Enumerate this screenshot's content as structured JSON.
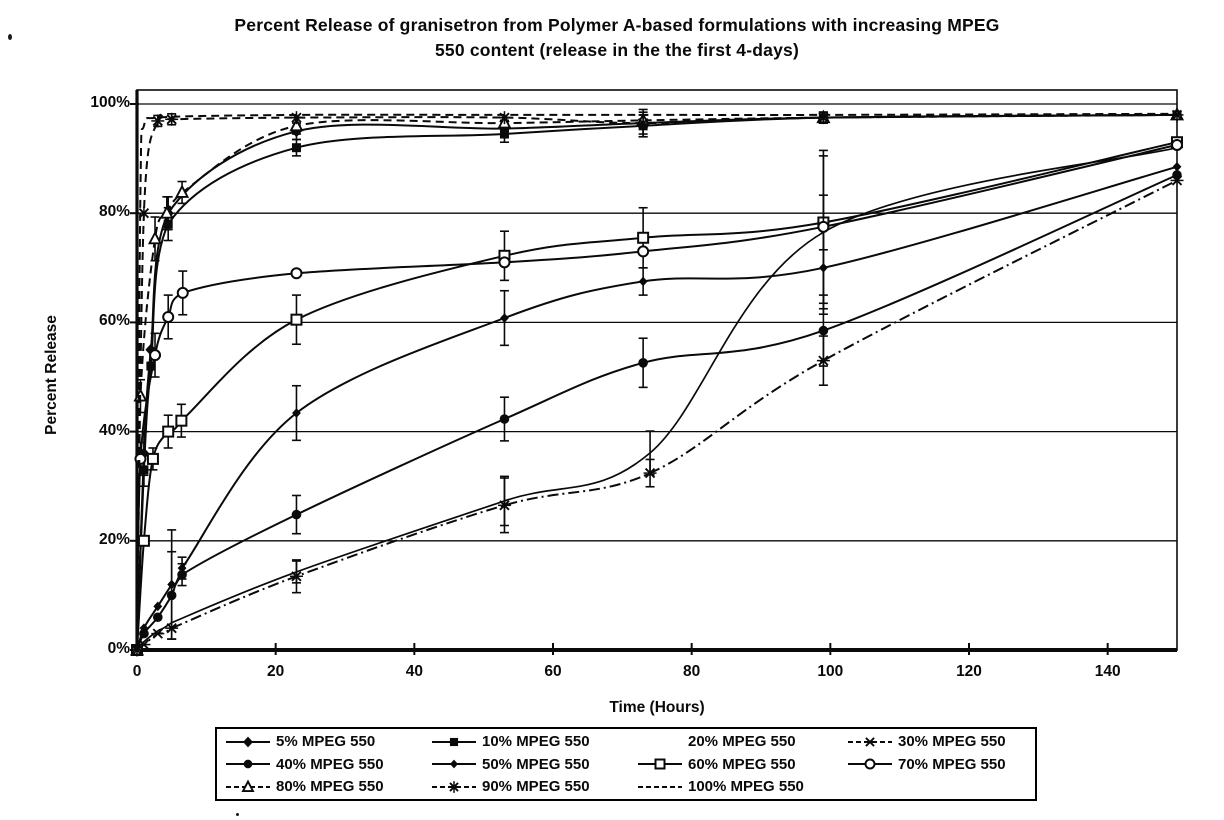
{
  "title": {
    "line1": "Percent Release of granisetron from Polymer A-based formulations with increasing MPEG",
    "line2": "550 content (release in the the first 4-days)"
  },
  "chart_data": {
    "type": "line",
    "title": "Percent Release of granisetron from Polymer A-based formulations with increasing MPEG 550 content (release in the the first 4-days)",
    "xlabel": "Time (Hours)",
    "ylabel": "Percent Release",
    "xlim": [
      0,
      150
    ],
    "ylim": [
      0,
      100
    ],
    "x_ticks": [
      0,
      20,
      40,
      60,
      80,
      100,
      120,
      140
    ],
    "y_tick_labels": [
      "0%",
      "20%",
      "40%",
      "60%",
      "80%",
      "100%"
    ],
    "y_tick_values": [
      0,
      20,
      40,
      60,
      80,
      100
    ],
    "grid": "horizontal-only",
    "legend_position": "bottom",
    "ink_color": "#0a0a0a",
    "background": "#ffffff",
    "series": [
      {
        "name": "5% MPEG 550",
        "marker": "diamond-filled",
        "line_style": "solid",
        "x": [
          0,
          1,
          2,
          4.5,
          23,
          53,
          73,
          99,
          150
        ],
        "y": [
          0,
          36,
          55,
          80,
          95,
          95.5,
          96.5,
          97.5,
          98
        ],
        "err": [
          0,
          4,
          0,
          3,
          1.5,
          1.5,
          2,
          1,
          0
        ]
      },
      {
        "name": "10% MPEG 550",
        "marker": "square-filled",
        "line_style": "solid",
        "x": [
          0,
          1,
          2,
          4.5,
          23,
          53,
          73,
          99,
          150
        ],
        "y": [
          0,
          33,
          52,
          78,
          92,
          94.5,
          96,
          97.5,
          98
        ],
        "err": [
          0,
          3,
          0,
          3,
          1.5,
          1.5,
          2,
          1,
          0
        ]
      },
      {
        "name": "20% MPEG 550",
        "marker": "none",
        "line_style": "solid",
        "x": [
          0,
          1,
          3,
          5,
          23,
          53,
          74,
          99,
          150
        ],
        "y": [
          0,
          1.5,
          3.5,
          5,
          14.3,
          27.3,
          36.1,
          76.5,
          92
        ],
        "err": [
          0,
          0,
          0,
          0,
          2,
          4.5,
          4,
          14,
          0
        ]
      },
      {
        "name": "30% MPEG 550",
        "marker": "x-star",
        "line_style": "dash-dot",
        "x": [
          0,
          1,
          3,
          5,
          23,
          53,
          74,
          99,
          150
        ],
        "y": [
          0,
          1,
          3,
          4,
          13.5,
          26.5,
          32.4,
          53,
          86
        ],
        "err": [
          0,
          0,
          0,
          0,
          3,
          5,
          2.5,
          4.5,
          0
        ]
      },
      {
        "name": "40% MPEG 550",
        "marker": "circle-filled",
        "line_style": "solid",
        "x": [
          0,
          1,
          3,
          5,
          6.5,
          23,
          53,
          73,
          99,
          150
        ],
        "y": [
          0,
          3,
          6,
          10,
          13.8,
          24.8,
          42.3,
          52.6,
          58.5,
          87
        ],
        "err": [
          0,
          0,
          0,
          8,
          2,
          3.5,
          4,
          4.5,
          6.5,
          0
        ]
      },
      {
        "name": "50% MPEG 550",
        "marker": "diamond-filled-small",
        "line_style": "solid",
        "x": [
          0,
          1,
          3,
          5,
          6.5,
          23,
          53,
          73,
          99,
          150
        ],
        "y": [
          0,
          4,
          8,
          12,
          15,
          43.4,
          60.8,
          67.5,
          70,
          88.5
        ],
        "err": [
          0,
          0,
          0,
          10,
          2,
          5,
          5,
          2.5,
          8.5,
          0
        ]
      },
      {
        "name": "60% MPEG 550",
        "marker": "square-open",
        "line_style": "solid",
        "x": [
          0,
          1,
          2.3,
          4.5,
          6.4,
          23,
          53,
          73,
          99,
          150
        ],
        "y": [
          0,
          20,
          35,
          40,
          42,
          60.5,
          72.2,
          75.5,
          78.3,
          93
        ],
        "err": [
          0,
          0,
          2,
          3,
          3,
          4.5,
          4.5,
          5.5,
          5,
          0
        ]
      },
      {
        "name": "70% MPEG 550",
        "marker": "circle-open",
        "line_style": "solid",
        "x": [
          0,
          0.5,
          2.6,
          4.5,
          6.6,
          23,
          53,
          73,
          99,
          150
        ],
        "y": [
          0,
          35,
          54,
          61,
          65.4,
          69,
          71,
          73,
          77.5,
          92.5
        ],
        "err": [
          0,
          3,
          4,
          4,
          4,
          0,
          0,
          0,
          14,
          0
        ]
      },
      {
        "name": "80% MPEG 550",
        "marker": "triangle-open",
        "line_style": "dashed",
        "x": [
          0,
          0.5,
          2.6,
          4.3,
          6.5,
          23,
          53,
          73,
          99,
          150
        ],
        "y": [
          0,
          46.5,
          75.3,
          80,
          83.8,
          96,
          96.5,
          97,
          97.5,
          98
        ],
        "err": [
          0,
          3,
          4,
          3,
          2,
          1.5,
          1,
          1,
          1,
          0
        ]
      },
      {
        "name": "90% MPEG 550",
        "marker": "asterisk",
        "line_style": "dashed",
        "x": [
          0,
          1,
          3,
          5,
          23,
          53,
          73,
          99,
          150
        ],
        "y": [
          0,
          80,
          96.9,
          97.2,
          97.5,
          97.5,
          96.5,
          97.5,
          98
        ],
        "err": [
          0,
          0,
          1,
          1,
          0,
          0,
          2.5,
          1,
          0
        ]
      },
      {
        "name": "100% MPEG 550",
        "marker": "none",
        "line_style": "dashed",
        "x": [
          0,
          0.5,
          1,
          3,
          23,
          53,
          73,
          99,
          150
        ],
        "y": [
          0,
          85,
          96,
          97.5,
          98,
          98,
          98,
          98,
          98.2
        ],
        "err": [
          0,
          0,
          0,
          0,
          0,
          0,
          0,
          0,
          0
        ]
      }
    ]
  }
}
